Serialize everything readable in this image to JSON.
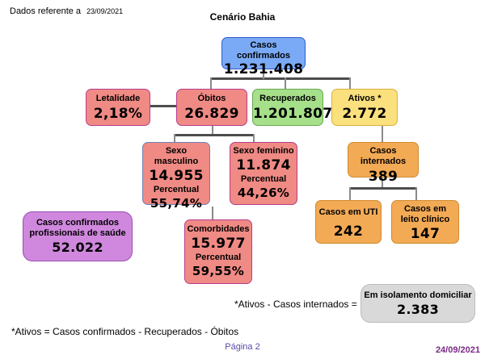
{
  "header": {
    "ref_label": "Dados referente a",
    "ref_date": "23/09/2021",
    "title": "Cenário Bahia"
  },
  "nodes": {
    "confirmados": {
      "label": "Casos confirmados",
      "value": "1.231.408"
    },
    "letalidade": {
      "label": "Letalidade",
      "value": "2,18%"
    },
    "obitos": {
      "label": "Óbitos",
      "value": "26.829"
    },
    "recuperados": {
      "label": "Recuperados",
      "value": "1.201.807"
    },
    "ativos": {
      "label": "Ativos *",
      "value": "2.772"
    },
    "masculino": {
      "label": "Sexo masculino",
      "value": "14.955",
      "pct_label": "Percentual",
      "pct": "55,74%"
    },
    "feminino": {
      "label": "Sexo feminino",
      "value": "11.874",
      "pct_label": "Percentual",
      "pct": "44,26%"
    },
    "internados": {
      "label": "Casos internados",
      "value": "389"
    },
    "profissionais": {
      "label": "Casos confirmados profissionais de saúde",
      "value": "52.022"
    },
    "uti": {
      "label": "Casos em UTI",
      "value": "242"
    },
    "leito": {
      "label": "Casos em leito clínico",
      "value": "147"
    },
    "comorbidades": {
      "label": "Comorbidades",
      "value": "15.977",
      "pct_label": "Percentual",
      "pct": "59,55%"
    },
    "isolamento": {
      "label": "Em isolamento domiciliar",
      "value": "2.383"
    }
  },
  "notes": {
    "isolamento_formula": "*Ativos - Casos internados =",
    "ativos_formula": "*Ativos = Casos confirmados - Recuperados - Óbitos"
  },
  "footer": {
    "page": "Página 2",
    "print_date": "24/09/2021"
  },
  "colors": {
    "blue": "#7aaaf5",
    "red": "#f08a84",
    "green": "#a6e08a",
    "yellow": "#fbe07e",
    "orange": "#f3aa55",
    "purple": "#cf88dd",
    "gray": "#d9d9d9"
  }
}
